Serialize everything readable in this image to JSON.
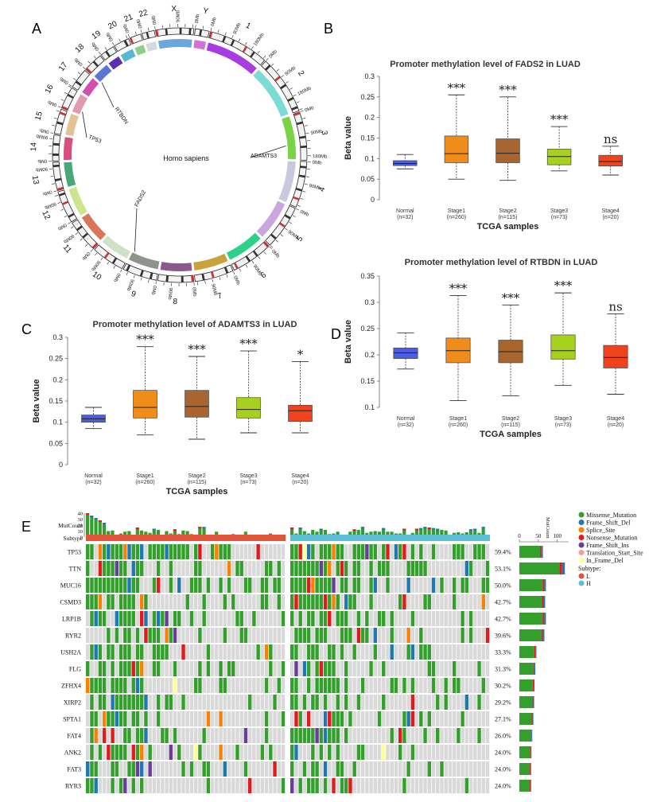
{
  "panels": {
    "a": "A",
    "b": "B",
    "c": "C",
    "d": "D",
    "e": "E"
  },
  "circos": {
    "center_label": "Homo sapiens",
    "chromosomes": [
      "1",
      "2",
      "3",
      "4",
      "5",
      "6",
      "7",
      "8",
      "9",
      "10",
      "11",
      "12",
      "13",
      "14",
      "15",
      "16",
      "17",
      "18",
      "19",
      "20",
      "21",
      "22",
      "X",
      "Y"
    ],
    "chrom_colors": [
      "#a93ce0",
      "#7bdcd3",
      "#7ad347",
      "#c9c9de",
      "#c9a6dd",
      "#2fd08a",
      "#c9a23b",
      "#8a5a8c",
      "#8c948b",
      "#cfe2c7",
      "#d9765a",
      "#cfe58d",
      "#48a878",
      "#d94e7f",
      "#e3c394",
      "#e39ab0",
      "#d14fb0",
      "#5b76d2",
      "#5a2fb4",
      "#5ab8d4",
      "#8ad08a",
      "#d6d9e0",
      "#6ba6dc",
      "#d470d9"
    ],
    "tick_labels": [
      "0Mb",
      "90Mb",
      "180Mb"
    ],
    "genes": [
      "RTBDN",
      "TP53",
      "ADAMTS3",
      "FADS2"
    ]
  },
  "chart_data": [
    {
      "id": "B",
      "type": "box",
      "title": "Promoter methylation level of FADS2 in LUAD",
      "xlabel": "TCGA samples",
      "ylabel": "Beta value",
      "ylim": [
        0,
        0.3
      ],
      "yticks": [
        0,
        0.05,
        0.1,
        0.15,
        0.2,
        0.25,
        0.3
      ],
      "groups": [
        {
          "name": "Normal",
          "n": "(n=32)",
          "color": "#4b5ee0",
          "min": 0.075,
          "q1": 0.083,
          "median": 0.088,
          "q3": 0.095,
          "max": 0.11,
          "sig": ""
        },
        {
          "name": "Stage1",
          "n": "(n=260)",
          "color": "#f08c1a",
          "min": 0.05,
          "q1": 0.09,
          "median": 0.112,
          "q3": 0.155,
          "max": 0.255,
          "sig": "***"
        },
        {
          "name": "Stage2",
          "n": "(n=115)",
          "color": "#a8652f",
          "min": 0.047,
          "q1": 0.09,
          "median": 0.113,
          "q3": 0.148,
          "max": 0.25,
          "sig": "***"
        },
        {
          "name": "Stage3",
          "n": "(n=73)",
          "color": "#a6d11f",
          "min": 0.07,
          "q1": 0.085,
          "median": 0.105,
          "q3": 0.123,
          "max": 0.178,
          "sig": "***"
        },
        {
          "name": "Stage4",
          "n": "(n=20)",
          "color": "#f0421c",
          "min": 0.06,
          "q1": 0.082,
          "median": 0.093,
          "q3": 0.108,
          "max": 0.13,
          "sig": "ns"
        }
      ]
    },
    {
      "id": "C",
      "type": "box",
      "title": "Promoter methylation level of ADAMTS3 in LUAD",
      "xlabel": "TCGA samples",
      "ylabel": "Beta value",
      "ylim": [
        0,
        0.3
      ],
      "yticks": [
        0,
        0.05,
        0.1,
        0.15,
        0.2,
        0.25,
        0.3
      ],
      "groups": [
        {
          "name": "Normal",
          "n": "(n=32)",
          "color": "#4b5ee0",
          "min": 0.085,
          "q1": 0.1,
          "median": 0.108,
          "q3": 0.117,
          "max": 0.135,
          "sig": ""
        },
        {
          "name": "Stage1",
          "n": "(n=260)",
          "color": "#f08c1a",
          "min": 0.07,
          "q1": 0.11,
          "median": 0.135,
          "q3": 0.175,
          "max": 0.278,
          "sig": "***"
        },
        {
          "name": "Stage2",
          "n": "(n=115)",
          "color": "#a8652f",
          "min": 0.06,
          "q1": 0.112,
          "median": 0.137,
          "q3": 0.175,
          "max": 0.255,
          "sig": "***"
        },
        {
          "name": "Stage3",
          "n": "(n=73)",
          "color": "#a6d11f",
          "min": 0.075,
          "q1": 0.11,
          "median": 0.13,
          "q3": 0.158,
          "max": 0.268,
          "sig": "***"
        },
        {
          "name": "Stage4",
          "n": "(n=20)",
          "color": "#f0421c",
          "min": 0.075,
          "q1": 0.102,
          "median": 0.127,
          "q3": 0.14,
          "max": 0.243,
          "sig": "*"
        }
      ]
    },
    {
      "id": "D",
      "type": "box",
      "title": "Promoter methylation level of RTBDN in LUAD",
      "xlabel": "TCGA samples",
      "ylabel": "Beta value",
      "ylim": [
        0.1,
        0.35
      ],
      "yticks": [
        0.1,
        0.15,
        0.2,
        0.25,
        0.3,
        0.35
      ],
      "groups": [
        {
          "name": "Normal",
          "n": "(n=32)",
          "color": "#4b5ee0",
          "min": 0.173,
          "q1": 0.193,
          "median": 0.204,
          "q3": 0.213,
          "max": 0.242,
          "sig": ""
        },
        {
          "name": "Stage1",
          "n": "(n=260)",
          "color": "#f08c1a",
          "min": 0.113,
          "q1": 0.185,
          "median": 0.208,
          "q3": 0.232,
          "max": 0.313,
          "sig": "***"
        },
        {
          "name": "Stage2",
          "n": "(n=115)",
          "color": "#a8652f",
          "min": 0.122,
          "q1": 0.185,
          "median": 0.206,
          "q3": 0.228,
          "max": 0.295,
          "sig": "***"
        },
        {
          "name": "Stage3",
          "n": "(n=73)",
          "color": "#a6d11f",
          "min": 0.142,
          "q1": 0.192,
          "median": 0.208,
          "q3": 0.238,
          "max": 0.318,
          "sig": "***"
        },
        {
          "name": "Stage4",
          "n": "(n=20)",
          "color": "#f0421c",
          "min": 0.125,
          "q1": 0.175,
          "median": 0.195,
          "q3": 0.218,
          "max": 0.278,
          "sig": "ns"
        }
      ]
    },
    {
      "id": "E",
      "type": "oncoplot",
      "mutcount_label": "MutCount",
      "mutcount_ticks": [
        "0",
        "10",
        "20",
        "30",
        "40"
      ],
      "subtype_label": "Subtype",
      "side_ticks": [
        "0",
        "50",
        "100"
      ],
      "side_axis_label": "MutCount",
      "genes": [
        {
          "name": "TP53",
          "pct": "59.4%",
          "freq": 0.594
        },
        {
          "name": "TTN",
          "pct": "53.1%",
          "freq": 0.531
        },
        {
          "name": "MUC16",
          "pct": "50.0%",
          "freq": 0.5
        },
        {
          "name": "CSMD3",
          "pct": "42.7%",
          "freq": 0.427
        },
        {
          "name": "LRP1B",
          "pct": "42.7%",
          "freq": 0.427
        },
        {
          "name": "RYR2",
          "pct": "39.6%",
          "freq": 0.396
        },
        {
          "name": "USH2A",
          "pct": "33.3%",
          "freq": 0.333
        },
        {
          "name": "FLG",
          "pct": "31.3%",
          "freq": 0.313
        },
        {
          "name": "ZFHX4",
          "pct": "30.2%",
          "freq": 0.302
        },
        {
          "name": "XIRP2",
          "pct": "29.2%",
          "freq": 0.292
        },
        {
          "name": "SPTA1",
          "pct": "27.1%",
          "freq": 0.271
        },
        {
          "name": "FAT4",
          "pct": "26.0%",
          "freq": 0.26
        },
        {
          "name": "ANK2",
          "pct": "24.0%",
          "freq": 0.24
        },
        {
          "name": "FAT3",
          "pct": "24.0%",
          "freq": 0.24
        },
        {
          "name": "RYR3",
          "pct": "24.0%",
          "freq": 0.24
        }
      ],
      "side_counts": [
        62,
        120,
        70,
        68,
        70,
        66,
        45,
        42,
        40,
        39,
        37,
        34,
        32,
        31,
        31
      ],
      "legend": [
        {
          "label": "Missense_Mutation",
          "color": "#33a02c"
        },
        {
          "label": "Frame_Shift_Del",
          "color": "#1f78b4"
        },
        {
          "label": "Splice_Site",
          "color": "#ff7f00"
        },
        {
          "label": "Nonsense_Mutation",
          "color": "#e31a1c"
        },
        {
          "label": "Frame_Shift_Ins",
          "color": "#6a3d9a"
        },
        {
          "label": "Translation_Start_Site",
          "color": "#fb9a99"
        },
        {
          "label": "In_Frame_Del",
          "color": "#ffff99"
        }
      ],
      "subtype_title": "Subtype:",
      "subtypes": [
        {
          "label": "L",
          "color": "#e0543a"
        },
        {
          "label": "H",
          "color": "#5bc0d6"
        }
      ]
    }
  ]
}
